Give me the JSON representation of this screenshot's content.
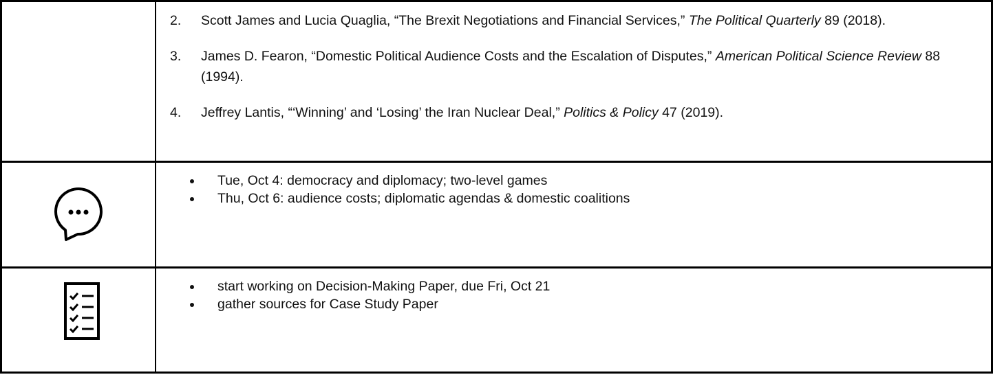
{
  "rows": [
    {
      "items": [
        {
          "number": "2.",
          "parts": [
            {
              "text": "Scott James and Lucia Quaglia, “The Brexit Negotiations and Financial Services,” "
            },
            {
              "text": "The Political Quarterly",
              "italic": true
            },
            {
              "text": " 89 (2018)."
            }
          ]
        },
        {
          "number": "3.",
          "parts": [
            {
              "text": "James D. Fearon, “Domestic Political Audience Costs and the Escalation of Disputes,” "
            },
            {
              "text": "American Political Science Review",
              "italic": true
            },
            {
              "text": " 88 (1994)."
            }
          ]
        },
        {
          "number": "4.",
          "parts": [
            {
              "text": "Jeffrey Lantis, “‘Winning’ and ‘Losing’ the Iran Nuclear Deal,” "
            },
            {
              "text": "Politics & Policy",
              "italic": true
            },
            {
              "text": " 47 (2019)."
            }
          ]
        }
      ]
    },
    {
      "bullets": [
        "Tue, Oct 4: democracy and diplomacy; two-level games",
        "Thu, Oct 6: audience costs; diplomatic agendas & domestic coalitions"
      ]
    },
    {
      "bullets": [
        "start working on Decision-Making Paper, due Fri, Oct 21",
        "gather sources for Case Study Paper"
      ]
    }
  ]
}
